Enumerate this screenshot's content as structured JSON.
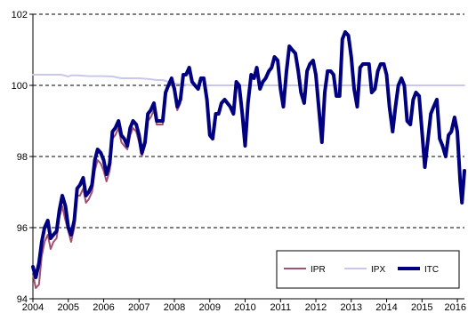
{
  "chart_data": {
    "type": "line",
    "xlim": [
      2004.0,
      2016.2
    ],
    "ylim": [
      94,
      102
    ],
    "x_ticks": [
      2004,
      2005,
      2006,
      2007,
      2008,
      2009,
      2010,
      2011,
      2012,
      2013,
      2014,
      2015,
      2016
    ],
    "x_tick_labels": [
      "2004",
      "2005",
      "2006",
      "2007",
      "2008",
      "2009",
      "2010",
      "2011",
      "2012",
      "2013",
      "2014",
      "2015",
      "2016"
    ],
    "y_ticks": [
      94,
      96,
      98,
      100,
      102
    ],
    "y_tick_labels": [
      "94",
      "96",
      "98",
      "100",
      "102"
    ],
    "grid": "horizontal dashed",
    "legend_position": "bottom-right",
    "series": [
      {
        "name": "IPR",
        "color": "#a05070",
        "width": 2,
        "points": [
          [
            2004.0,
            94.7
          ],
          [
            2004.08,
            94.3
          ],
          [
            2004.17,
            94.4
          ],
          [
            2004.25,
            95.2
          ],
          [
            2004.33,
            95.6
          ],
          [
            2004.42,
            95.8
          ],
          [
            2004.5,
            95.4
          ],
          [
            2004.58,
            95.6
          ],
          [
            2004.67,
            95.7
          ],
          [
            2004.75,
            96.3
          ],
          [
            2004.83,
            96.6
          ],
          [
            2004.92,
            96.2
          ],
          [
            2005.0,
            95.9
          ],
          [
            2005.08,
            95.6
          ],
          [
            2005.17,
            96.0
          ],
          [
            2005.25,
            96.9
          ],
          [
            2005.33,
            96.9
          ],
          [
            2005.42,
            97.1
          ],
          [
            2005.5,
            96.7
          ],
          [
            2005.58,
            96.8
          ],
          [
            2005.67,
            97.0
          ],
          [
            2005.75,
            97.6
          ],
          [
            2005.83,
            97.9
          ],
          [
            2005.92,
            97.8
          ],
          [
            2006.0,
            97.6
          ],
          [
            2006.08,
            97.3
          ],
          [
            2006.17,
            97.6
          ],
          [
            2006.25,
            98.5
          ],
          [
            2006.33,
            98.6
          ],
          [
            2006.42,
            98.8
          ],
          [
            2006.5,
            98.4
          ],
          [
            2006.58,
            98.3
          ],
          [
            2006.67,
            98.2
          ],
          [
            2006.75,
            98.6
          ],
          [
            2006.83,
            98.8
          ],
          [
            2006.92,
            98.7
          ],
          [
            2007.0,
            98.4
          ],
          [
            2007.08,
            98.0
          ],
          [
            2007.17,
            98.3
          ],
          [
            2007.25,
            99.0
          ],
          [
            2007.33,
            99.1
          ],
          [
            2007.42,
            99.3
          ],
          [
            2007.5,
            98.9
          ],
          [
            2007.58,
            98.9
          ],
          [
            2007.67,
            98.9
          ],
          [
            2007.75,
            99.7
          ],
          [
            2007.83,
            100.0
          ],
          [
            2007.92,
            100.1
          ],
          [
            2008.0,
            99.8
          ],
          [
            2008.08,
            99.3
          ],
          [
            2008.17,
            99.5
          ]
        ]
      },
      {
        "name": "IPX",
        "color": "#c8c8ec",
        "width": 2,
        "points": [
          [
            2004.0,
            100.3
          ],
          [
            2004.5,
            100.3
          ],
          [
            2004.8,
            100.3
          ],
          [
            2005.0,
            100.25
          ],
          [
            2005.08,
            100.28
          ],
          [
            2005.25,
            100.28
          ],
          [
            2005.58,
            100.26
          ],
          [
            2006.0,
            100.26
          ],
          [
            2006.25,
            100.25
          ],
          [
            2006.5,
            100.2
          ],
          [
            2006.75,
            100.2
          ],
          [
            2007.0,
            100.2
          ],
          [
            2007.25,
            100.18
          ],
          [
            2007.5,
            100.15
          ],
          [
            2007.67,
            100.15
          ],
          [
            2007.83,
            100.1
          ],
          [
            2008.0,
            100.05
          ],
          [
            2008.5,
            100.0
          ],
          [
            2009.0,
            100.0
          ],
          [
            2016.2,
            100.0
          ]
        ]
      },
      {
        "name": "ITC",
        "color": "#000080",
        "width": 4,
        "points": [
          [
            2004.0,
            94.9
          ],
          [
            2004.08,
            94.6
          ],
          [
            2004.17,
            95.0
          ],
          [
            2004.25,
            95.6
          ],
          [
            2004.33,
            96.0
          ],
          [
            2004.42,
            96.2
          ],
          [
            2004.5,
            95.7
          ],
          [
            2004.58,
            95.8
          ],
          [
            2004.67,
            95.9
          ],
          [
            2004.75,
            96.5
          ],
          [
            2004.83,
            96.9
          ],
          [
            2004.92,
            96.6
          ],
          [
            2005.0,
            96.0
          ],
          [
            2005.08,
            95.8
          ],
          [
            2005.17,
            96.2
          ],
          [
            2005.25,
            97.1
          ],
          [
            2005.33,
            97.2
          ],
          [
            2005.42,
            97.4
          ],
          [
            2005.5,
            96.9
          ],
          [
            2005.58,
            97.0
          ],
          [
            2005.67,
            97.2
          ],
          [
            2005.75,
            97.9
          ],
          [
            2005.83,
            98.2
          ],
          [
            2005.92,
            98.1
          ],
          [
            2006.0,
            97.9
          ],
          [
            2006.08,
            97.5
          ],
          [
            2006.17,
            97.8
          ],
          [
            2006.25,
            98.7
          ],
          [
            2006.33,
            98.8
          ],
          [
            2006.42,
            99.0
          ],
          [
            2006.5,
            98.6
          ],
          [
            2006.58,
            98.5
          ],
          [
            2006.67,
            98.3
          ],
          [
            2006.75,
            98.8
          ],
          [
            2006.83,
            99.0
          ],
          [
            2006.92,
            98.9
          ],
          [
            2007.0,
            98.6
          ],
          [
            2007.08,
            98.1
          ],
          [
            2007.17,
            98.4
          ],
          [
            2007.25,
            99.2
          ],
          [
            2007.33,
            99.3
          ],
          [
            2007.42,
            99.5
          ],
          [
            2007.5,
            99.0
          ],
          [
            2007.58,
            99.0
          ],
          [
            2007.67,
            99.0
          ],
          [
            2007.75,
            99.8
          ],
          [
            2007.83,
            100.0
          ],
          [
            2007.92,
            100.2
          ],
          [
            2008.0,
            99.9
          ],
          [
            2008.08,
            99.4
          ],
          [
            2008.17,
            99.6
          ],
          [
            2008.25,
            100.3
          ],
          [
            2008.33,
            100.3
          ],
          [
            2008.42,
            100.5
          ],
          [
            2008.5,
            100.1
          ],
          [
            2008.58,
            100.0
          ],
          [
            2008.67,
            99.9
          ],
          [
            2008.75,
            100.2
          ],
          [
            2008.83,
            100.2
          ],
          [
            2008.92,
            99.6
          ],
          [
            2009.0,
            98.6
          ],
          [
            2009.08,
            98.5
          ],
          [
            2009.17,
            99.2
          ],
          [
            2009.25,
            99.2
          ],
          [
            2009.33,
            99.5
          ],
          [
            2009.42,
            99.6
          ],
          [
            2009.5,
            99.5
          ],
          [
            2009.58,
            99.4
          ],
          [
            2009.67,
            99.2
          ],
          [
            2009.75,
            100.1
          ],
          [
            2009.83,
            100.0
          ],
          [
            2009.92,
            99.2
          ],
          [
            2010.0,
            98.3
          ],
          [
            2010.08,
            99.5
          ],
          [
            2010.17,
            100.3
          ],
          [
            2010.25,
            100.2
          ],
          [
            2010.33,
            100.5
          ],
          [
            2010.42,
            99.9
          ],
          [
            2010.5,
            100.1
          ],
          [
            2010.58,
            100.2
          ],
          [
            2010.67,
            100.4
          ],
          [
            2010.75,
            100.5
          ],
          [
            2010.83,
            100.8
          ],
          [
            2010.92,
            100.7
          ],
          [
            2011.0,
            99.9
          ],
          [
            2011.08,
            99.4
          ],
          [
            2011.17,
            100.4
          ],
          [
            2011.25,
            101.1
          ],
          [
            2011.33,
            101.0
          ],
          [
            2011.42,
            100.9
          ],
          [
            2011.5,
            100.4
          ],
          [
            2011.58,
            99.8
          ],
          [
            2011.67,
            99.5
          ],
          [
            2011.75,
            100.4
          ],
          [
            2011.83,
            100.6
          ],
          [
            2011.92,
            100.7
          ],
          [
            2012.0,
            100.3
          ],
          [
            2012.08,
            99.4
          ],
          [
            2012.17,
            98.4
          ],
          [
            2012.25,
            99.8
          ],
          [
            2012.33,
            100.4
          ],
          [
            2012.42,
            100.4
          ],
          [
            2012.5,
            100.3
          ],
          [
            2012.58,
            99.7
          ],
          [
            2012.67,
            99.7
          ],
          [
            2012.75,
            101.3
          ],
          [
            2012.83,
            101.5
          ],
          [
            2012.92,
            101.4
          ],
          [
            2013.0,
            100.8
          ],
          [
            2013.08,
            99.9
          ],
          [
            2013.17,
            99.4
          ],
          [
            2013.25,
            100.5
          ],
          [
            2013.33,
            100.6
          ],
          [
            2013.42,
            100.6
          ],
          [
            2013.5,
            100.6
          ],
          [
            2013.58,
            99.8
          ],
          [
            2013.67,
            99.9
          ],
          [
            2013.75,
            100.4
          ],
          [
            2013.83,
            100.6
          ],
          [
            2013.92,
            100.6
          ],
          [
            2014.0,
            100.3
          ],
          [
            2014.08,
            99.4
          ],
          [
            2014.17,
            98.7
          ],
          [
            2014.25,
            99.4
          ],
          [
            2014.33,
            100.0
          ],
          [
            2014.42,
            100.2
          ],
          [
            2014.5,
            100.0
          ],
          [
            2014.58,
            99.0
          ],
          [
            2014.67,
            98.9
          ],
          [
            2014.75,
            99.6
          ],
          [
            2014.83,
            99.8
          ],
          [
            2014.92,
            99.7
          ],
          [
            2015.0,
            98.7
          ],
          [
            2015.08,
            97.7
          ],
          [
            2015.17,
            98.5
          ],
          [
            2015.25,
            99.2
          ],
          [
            2015.33,
            99.4
          ],
          [
            2015.42,
            99.6
          ],
          [
            2015.5,
            98.5
          ],
          [
            2015.58,
            98.3
          ],
          [
            2015.67,
            98.0
          ],
          [
            2015.75,
            98.6
          ],
          [
            2015.83,
            98.7
          ],
          [
            2015.92,
            99.1
          ],
          [
            2016.0,
            98.7
          ],
          [
            2016.08,
            97.3
          ],
          [
            2016.13,
            96.7
          ],
          [
            2016.2,
            97.6
          ]
        ]
      }
    ]
  }
}
